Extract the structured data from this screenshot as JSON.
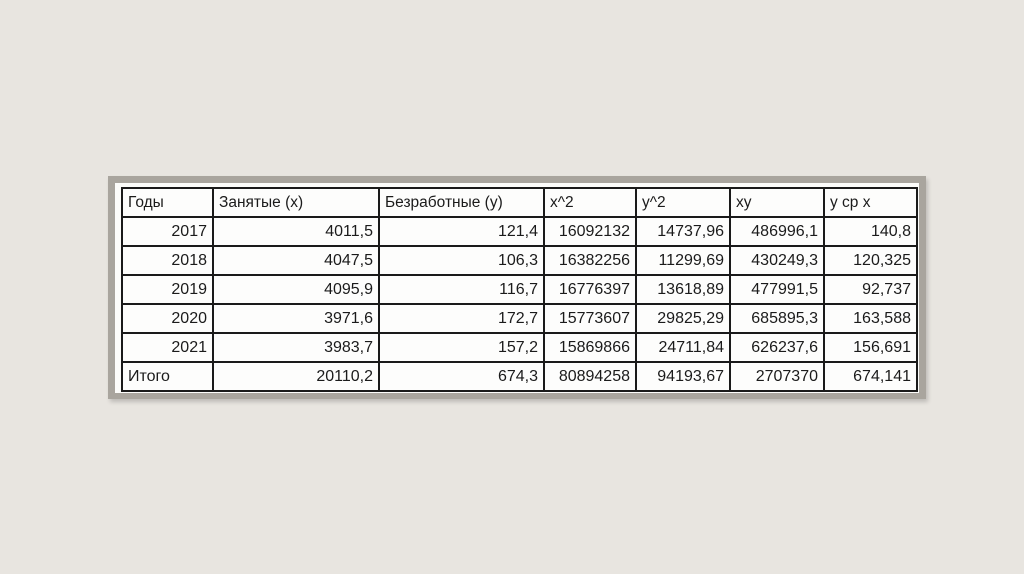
{
  "slide": {
    "background_color": "#e8e5e0",
    "panel_frame_color": "#a9a59e",
    "panel_inner_color": "#fcfcfa",
    "grid_color": "#1a1a1a"
  },
  "table": {
    "columns": [
      {
        "label": "Годы"
      },
      {
        "label": "Занятые (x)"
      },
      {
        "label": "Безработные (y)"
      },
      {
        "label": "x^2"
      },
      {
        "label": "y^2"
      },
      {
        "label": "xy"
      },
      {
        "label": "y ср x"
      }
    ],
    "rows": [
      {
        "cells": [
          "2017",
          "4011,5",
          "121,4",
          "16092132",
          "14737,96",
          "486996,1",
          "140,8"
        ]
      },
      {
        "cells": [
          "2018",
          "4047,5",
          "106,3",
          "16382256",
          "11299,69",
          "430249,3",
          "120,325"
        ]
      },
      {
        "cells": [
          "2019",
          "4095,9",
          "116,7",
          "16776397",
          "13618,89",
          "477991,5",
          "92,737"
        ]
      },
      {
        "cells": [
          "2020",
          "3971,6",
          "172,7",
          "15773607",
          "29825,29",
          "685895,3",
          "163,588"
        ]
      },
      {
        "cells": [
          "2021",
          "3983,7",
          "157,2",
          "15869866",
          "24711,84",
          "626237,6",
          "156,691"
        ]
      },
      {
        "cells": [
          "Итого",
          "20110,2",
          "674,3",
          "80894258",
          "94193,67",
          "2707370",
          "674,141"
        ]
      }
    ]
  }
}
